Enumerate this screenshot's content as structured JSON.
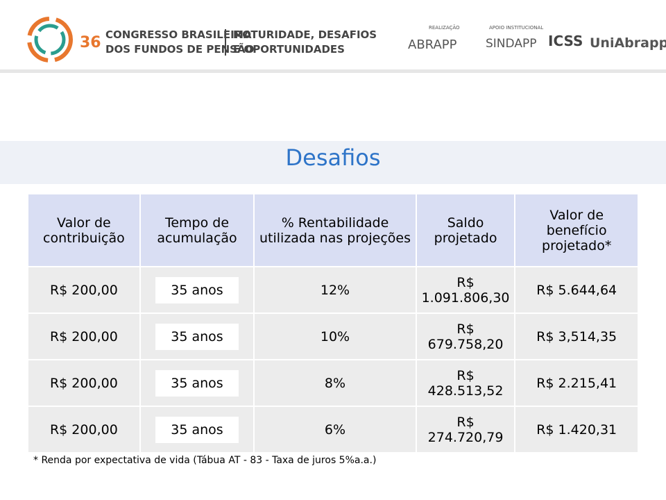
{
  "header": {
    "event_number": "36",
    "event_line1": "CONGRESSO BRASILEIRO",
    "event_line2": "DOS FUNDOS DE PENSÃO",
    "theme_line1": "MATURIDADE, DESAFIOS",
    "theme_line2": "E OPORTUNIDADES",
    "realizacao": "REALIZAÇÃO",
    "abrapp": "ABRAPP",
    "apoio": "APOIO INSTITUCIONAL",
    "sindapp": "SINDAPP",
    "icss": "ICSS",
    "uniabrapp": "UniAbrapp"
  },
  "title": "Desafios",
  "table": {
    "columns": [
      "Valor de contribuição",
      "Tempo de acumulação",
      "% Rentabilidade utilizada nas projeções",
      "Saldo projetado",
      "Valor de benefício projetado*"
    ],
    "rows": [
      [
        "R$ 200,00",
        "35 anos",
        "12%",
        "R$ 1.091.806,30",
        "R$ 5.644,64"
      ],
      [
        "R$ 200,00",
        "35 anos",
        "10%",
        "R$ 679.758,20",
        "R$ 3,514,35"
      ],
      [
        "R$ 200,00",
        "35 anos",
        "8%",
        "R$ 428.513,52",
        "R$ 2.215,41"
      ],
      [
        "R$ 200,00",
        "35 anos",
        "6%",
        "R$ 274.720,79",
        "R$ 1.420,31"
      ]
    ]
  },
  "footnote": "* Renda por expectativa de vida (Tábua AT - 83 - Taxa de juros 5%a.a.)"
}
